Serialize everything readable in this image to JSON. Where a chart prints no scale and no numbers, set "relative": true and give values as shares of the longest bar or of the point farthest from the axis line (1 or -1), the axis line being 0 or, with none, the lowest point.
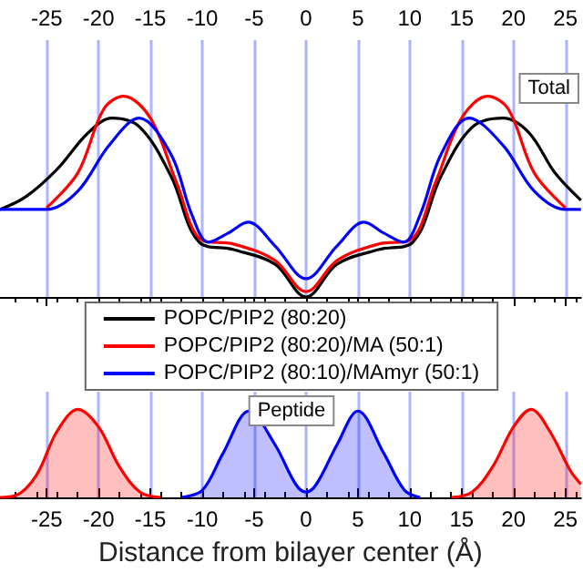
{
  "chart_data": [
    {
      "type": "line",
      "relative": true,
      "xlim": [
        -29.5,
        26.5
      ],
      "xticks": [
        -25,
        -20,
        -15,
        -10,
        -5,
        0,
        5,
        10,
        15,
        20,
        25
      ],
      "grid": "x",
      "legend": "bottom",
      "marker": "none",
      "tick_labels": "x",
      "annotations": [
        "Total"
      ],
      "series": [
        {
          "name": "POPC/PIP2 (80:20)",
          "color": "#000000",
          "x": [
            -29.5,
            -27,
            -24,
            -21,
            -18.7,
            -16,
            -13,
            -10.3,
            -7,
            -3,
            0,
            3,
            7,
            10.3,
            13,
            16,
            19,
            21.5,
            24,
            26.5
          ],
          "values": [
            0.436,
            0.5,
            0.636,
            0.818,
            0.891,
            0.845,
            0.6,
            0.273,
            0.236,
            0.164,
            0,
            0.164,
            0.236,
            0.273,
            0.6,
            0.845,
            0.891,
            0.818,
            0.618,
            0.482
          ]
        },
        {
          "name": "POPC/PIP2 (80:20)/MA (50:1)",
          "color": "#ff0000",
          "x": [
            -25,
            -22,
            -19.5,
            -17.6,
            -15,
            -12.5,
            -10,
            -7,
            -3,
            0,
            3,
            7,
            10,
            12.5,
            15,
            17.5,
            19.5,
            22,
            25
          ],
          "values": [
            0.445,
            0.618,
            0.936,
            1,
            0.891,
            0.573,
            0.282,
            0.264,
            0.182,
            0.027,
            0.182,
            0.264,
            0.282,
            0.573,
            0.891,
            1,
            0.936,
            0.618,
            0.445
          ]
        },
        {
          "name": "POPC/PIP2 (80:10)/MAmyr (50:1)",
          "color": "#0000ff",
          "x": [
            -29.5,
            -25,
            -22,
            -19,
            -16.1,
            -13,
            -11,
            -9.4,
            -7.5,
            -5.6,
            -3,
            0,
            3,
            5.6,
            7.5,
            9.4,
            11,
            13,
            15.7,
            19,
            22,
            25,
            26.5
          ],
          "values": [
            0.436,
            0.436,
            0.527,
            0.755,
            0.891,
            0.709,
            0.409,
            0.273,
            0.318,
            0.373,
            0.255,
            0.091,
            0.255,
            0.373,
            0.318,
            0.273,
            0.409,
            0.709,
            0.891,
            0.755,
            0.527,
            0.436,
            0.436
          ]
        }
      ]
    },
    {
      "type": "area",
      "relative": true,
      "xlim": [
        -29.5,
        26.5
      ],
      "xticks": [
        -25,
        -20,
        -15,
        -10,
        -5,
        0,
        5,
        10,
        15,
        20,
        25
      ],
      "grid": "x",
      "marker": "none",
      "tick_labels": "x",
      "xlabel": "Distance from bilayer center (Å)",
      "annotations": [
        "Peptide"
      ],
      "series": [
        {
          "color": "#ff0000",
          "x": [
            -29.5,
            -28,
            -26,
            -24,
            -22,
            -20,
            -18,
            -16,
            -14,
            0,
            14,
            16,
            18,
            20,
            21.7,
            23.5,
            25.5,
            26.5
          ],
          "values": [
            0,
            0.02,
            0.25,
            0.75,
            1,
            0.8,
            0.35,
            0.06,
            0,
            null,
            0,
            0.06,
            0.35,
            0.8,
            1,
            0.75,
            0.3,
            0.15
          ]
        },
        {
          "color": "#0000ff",
          "x": [
            -12,
            -10,
            -8,
            -5.5,
            -3,
            -1,
            0,
            1,
            3,
            5,
            7.5,
            9.5,
            11
          ],
          "values": [
            0,
            0.08,
            0.5,
            0.98,
            0.6,
            0.15,
            0.06,
            0.15,
            0.6,
            0.98,
            0.5,
            0.08,
            0
          ]
        }
      ]
    }
  ]
}
